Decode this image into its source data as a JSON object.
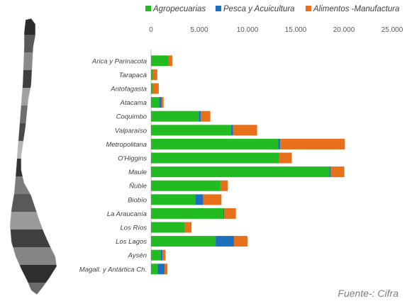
{
  "chart_data": {
    "type": "bar",
    "orientation": "horizontal",
    "stacked": true,
    "categories": [
      "Arica y Parinacota",
      "Tarapacá",
      "Antofagasta",
      "Atacama",
      "Coquimbo",
      "Valparaíso",
      "Metropolitana",
      "O'Higgins",
      "Maule",
      "Ñuble",
      "Biobío",
      "La Araucanía",
      "Los Ríos",
      "Los Lagos",
      "Aysén",
      "Magall. y Antártica Ch."
    ],
    "series": [
      {
        "name": "Agropecuarias",
        "color": "#22bb22",
        "values": [
          1800,
          150,
          150,
          850,
          4950,
          8300,
          13200,
          13300,
          18500,
          7200,
          4600,
          7500,
          3500,
          6700,
          1000,
          700
        ]
      },
      {
        "name": "Pesca y Acuicultura",
        "color": "#1f6fbf",
        "values": [
          0,
          50,
          50,
          250,
          200,
          200,
          200,
          0,
          150,
          0,
          800,
          100,
          0,
          1900,
          200,
          700
        ]
      },
      {
        "name": "Alimentos -Manufactura",
        "color": "#e8701a",
        "values": [
          400,
          450,
          600,
          200,
          1000,
          2500,
          6700,
          1300,
          1400,
          750,
          1900,
          1200,
          700,
          1400,
          300,
          300
        ]
      }
    ],
    "xlim": [
      0,
      25000
    ],
    "xticks": [
      "0",
      "5.000",
      "10.000",
      "15.000",
      "20.000",
      "25.000"
    ],
    "legend_position": "top",
    "grid": false
  },
  "source_text": "Fuente-: Cifra",
  "map_icon": "chile-regions-map"
}
